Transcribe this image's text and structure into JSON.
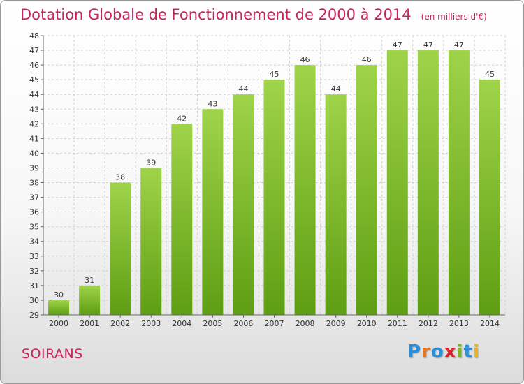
{
  "header": {
    "title": "Dotation Globale de Fonctionnement de 2000 à 2014",
    "subtitle": "(en milliers d'€)"
  },
  "footer": {
    "commune": "SOIRANS",
    "brand": "Proxiti"
  },
  "colors": {
    "accent": "#c8245a",
    "bar_top": "#9fd34a",
    "bar_bottom": "#5e9e12"
  },
  "chart_data": {
    "type": "bar",
    "title": "Dotation Globale de Fonctionnement de 2000 à 2014",
    "subtitle": "(en milliers d'€)",
    "xlabel": "",
    "ylabel": "",
    "categories": [
      "2000",
      "2001",
      "2002",
      "2003",
      "2004",
      "2005",
      "2006",
      "2007",
      "2008",
      "2009",
      "2010",
      "2011",
      "2012",
      "2013",
      "2014"
    ],
    "values": [
      30,
      31,
      38,
      39,
      42,
      43,
      44,
      45,
      46,
      44,
      46,
      47,
      47,
      47,
      45
    ],
    "ylim": [
      29,
      48
    ],
    "yticks": [
      29,
      30,
      31,
      32,
      33,
      34,
      35,
      36,
      37,
      38,
      39,
      40,
      41,
      42,
      43,
      44,
      45,
      46,
      47,
      48
    ],
    "grid": true,
    "legend": "none"
  }
}
